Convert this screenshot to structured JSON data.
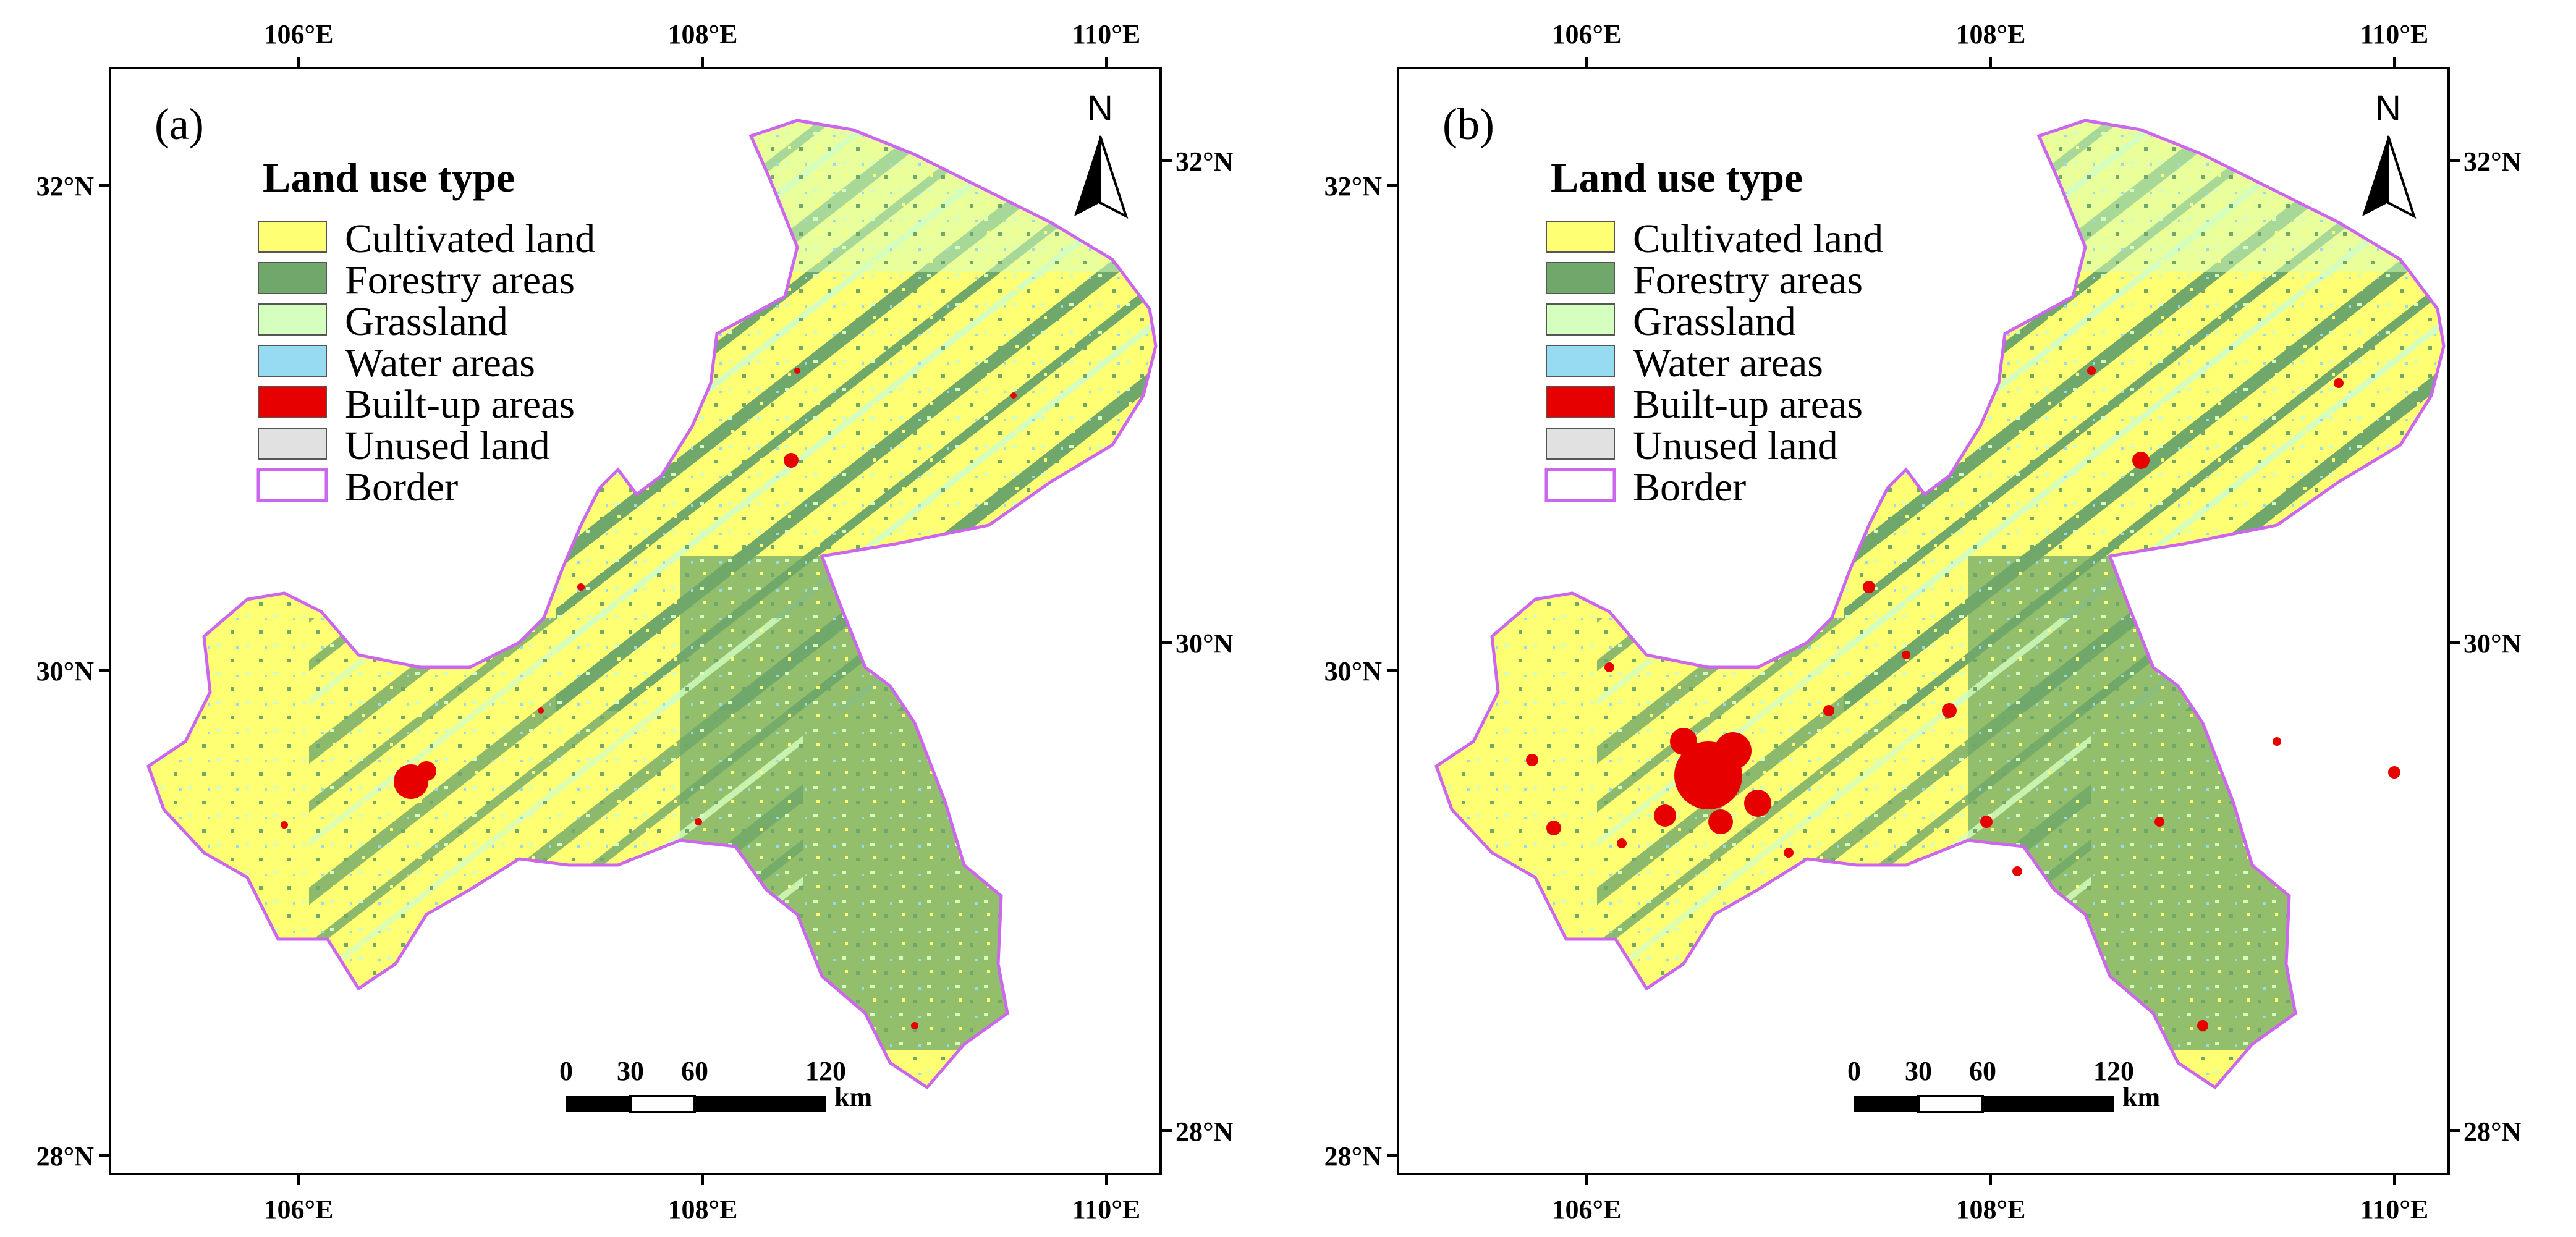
{
  "colors": {
    "cultivated": "#ffff73",
    "forestry": "#6fa86a",
    "grassland": "#d5ffbe",
    "water": "#97dbf2",
    "built_up": "#e60000",
    "unused": "#e1e1e1",
    "border": "#cc66ee"
  },
  "icons": [
    "north-arrow-icon"
  ],
  "panels": [
    {
      "label": "(a)",
      "legend_title": "Land use type",
      "legend": [
        "Cultivated land",
        "Forestry areas",
        "Grassland",
        "Water areas",
        "Built-up areas",
        "Unused land",
        "Border"
      ],
      "north": "N",
      "scale_ticks": [
        "0",
        "30",
        "60",
        "120"
      ],
      "scale_unit": "km",
      "lon_ticks_top": [
        "106°E",
        "108°E",
        "110°E"
      ],
      "lon_ticks_bottom": [
        "106°E",
        "108°E",
        "110°E"
      ],
      "lat_ticks_left": [
        "32°N",
        "30°N",
        "28°N"
      ],
      "lat_ticks_right": [
        "32°N",
        "30°N",
        "28°N"
      ]
    },
    {
      "label": "(b)",
      "legend_title": "Land use type",
      "legend": [
        "Cultivated land",
        "Forestry areas",
        "Grassland",
        "Water areas",
        "Built-up areas",
        "Unused land",
        "Border"
      ],
      "north": "N",
      "scale_ticks": [
        "0",
        "30",
        "60",
        "120"
      ],
      "scale_unit": "km",
      "lon_ticks_top": [
        "106°E",
        "108°E",
        "110°E"
      ],
      "lon_ticks_bottom": [
        "106°E",
        "108°E",
        "110°E"
      ],
      "lat_ticks_left": [
        "32°N",
        "30°N",
        "28°N"
      ],
      "lat_ticks_right": [
        "32°N",
        "30°N",
        "28°N"
      ]
    }
  ]
}
